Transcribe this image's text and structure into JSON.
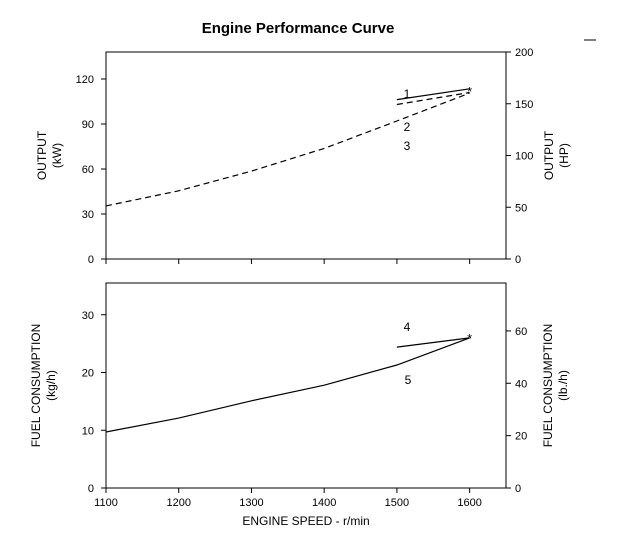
{
  "title": "Engine Performance Curve",
  "chart_data": [
    {
      "type": "line",
      "ylabel": [
        "OUTPUT",
        "(kW)"
      ],
      "ylabel_right": [
        "OUTPUT",
        "(HP)"
      ],
      "ylim": [
        0,
        138
      ],
      "yticks": [
        0,
        30,
        60,
        90,
        120
      ],
      "ylim_right": [
        0,
        200
      ],
      "yticks_right": [
        0,
        50,
        100,
        150,
        200
      ],
      "xlim": [
        1100,
        1650
      ],
      "series": [
        {
          "name": "1",
          "style": "solid",
          "x": [
            1500,
            1600
          ],
          "y": [
            106.3,
            113.5
          ]
        },
        {
          "name": "2",
          "style": "dashed",
          "x": [
            1500,
            1600
          ],
          "y": [
            103,
            111
          ]
        },
        {
          "name": "3",
          "style": "dashed",
          "x": [
            1100,
            1200,
            1300,
            1400,
            1500,
            1600
          ],
          "y": [
            35.4,
            45.5,
            58.6,
            73.7,
            92,
            110.6
          ]
        }
      ],
      "marker": {
        "x": 1600,
        "y": 112,
        "symbol": "*"
      }
    },
    {
      "type": "line",
      "ylabel": [
        "FUEL CONSUMPTION",
        "(kg/h)"
      ],
      "ylabel_right": [
        "FUEL CONSUMPTION",
        "(lb./h)"
      ],
      "ylim": [
        0,
        35.5
      ],
      "yticks": [
        0,
        10,
        20,
        30
      ],
      "ylim_right": [
        0,
        78.3
      ],
      "yticks_right": [
        0,
        20,
        40,
        60
      ],
      "xlim": [
        1100,
        1650
      ],
      "xticks": [
        1100,
        1200,
        1300,
        1400,
        1500,
        1600
      ],
      "xlabel": "ENGINE SPEED - r/min",
      "series": [
        {
          "name": "4",
          "style": "solid",
          "x": [
            1500,
            1600
          ],
          "y": [
            24.4,
            26
          ]
        },
        {
          "name": "5",
          "style": "solid",
          "x": [
            1100,
            1200,
            1300,
            1400,
            1500,
            1600
          ],
          "y": [
            9.7,
            12.1,
            15.1,
            17.8,
            21.3,
            26
          ]
        }
      ],
      "marker": {
        "x": 1600,
        "y": 26,
        "symbol": "*"
      }
    }
  ]
}
